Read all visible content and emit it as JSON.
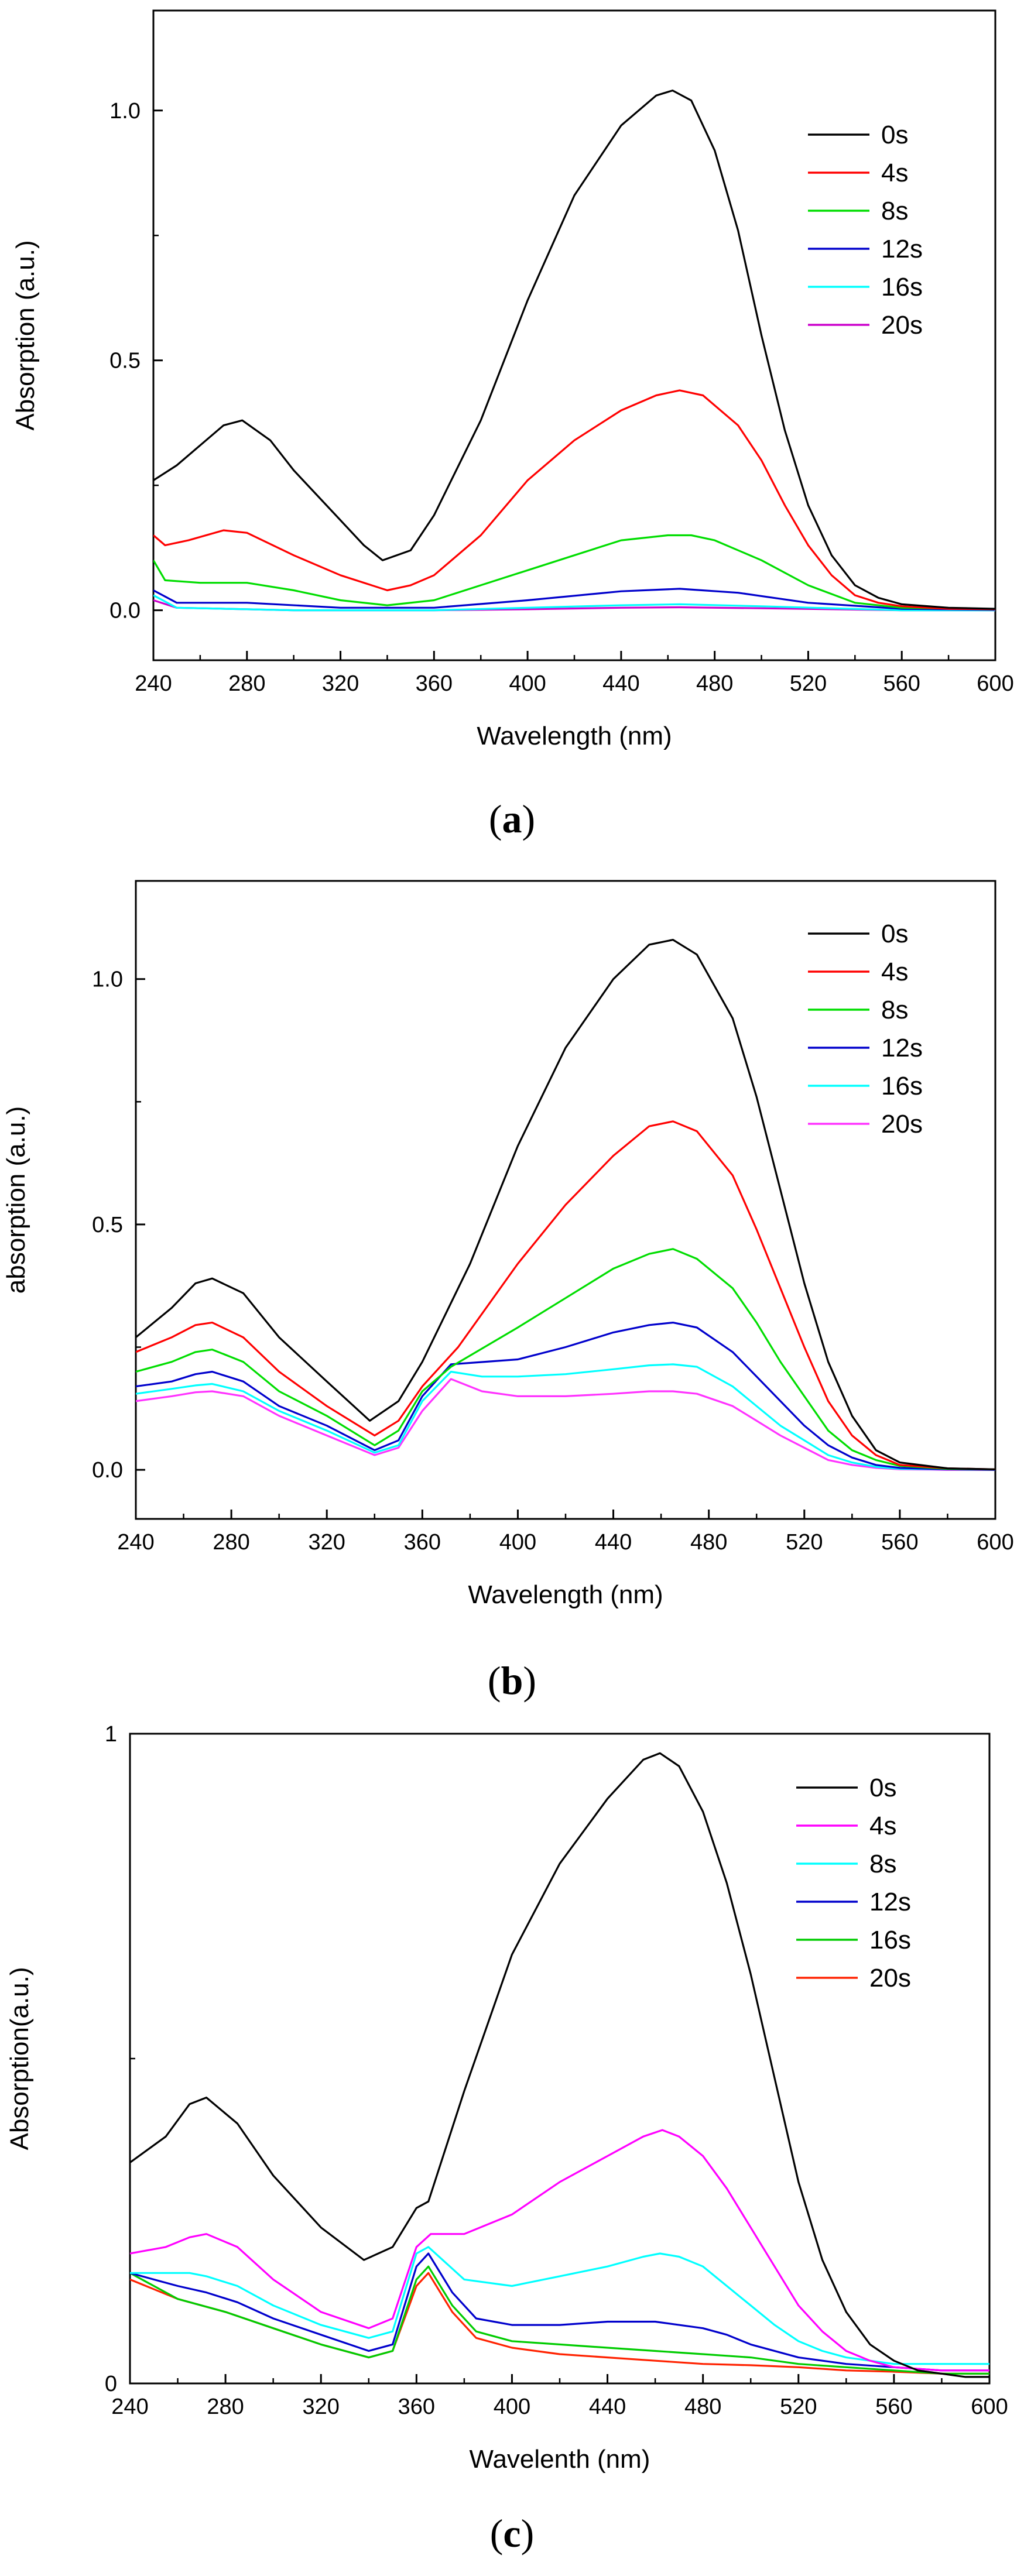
{
  "chart_data": [
    {
      "type": "line",
      "caption_letter": "a",
      "xlabel": "Wavelength (nm)",
      "ylabel": "Absorption (a.u.)",
      "xlim": [
        240,
        600
      ],
      "ylim": [
        -0.1,
        1.2
      ],
      "xticks": [
        240,
        280,
        320,
        360,
        400,
        440,
        480,
        520,
        560,
        600
      ],
      "xtick_labels": [
        "240",
        "280",
        "320",
        "360",
        "400",
        "440",
        "480",
        "520",
        "560",
        "600"
      ],
      "yticks": [
        0.0,
        0.5,
        1.0
      ],
      "ytick_labels": [
        "0.0",
        "0.5",
        "1.0"
      ],
      "legend_position": "top-right",
      "series": [
        {
          "name": "0s",
          "color": "#000000",
          "x": [
            240,
            250,
            260,
            270,
            278,
            290,
            300,
            320,
            330,
            338,
            350,
            360,
            380,
            400,
            420,
            440,
            455,
            462,
            470,
            480,
            490,
            500,
            510,
            520,
            530,
            540,
            550,
            560,
            580,
            600
          ],
          "y": [
            0.26,
            0.29,
            0.33,
            0.37,
            0.38,
            0.34,
            0.28,
            0.18,
            0.13,
            0.1,
            0.12,
            0.19,
            0.38,
            0.62,
            0.83,
            0.97,
            1.03,
            1.04,
            1.02,
            0.92,
            0.76,
            0.55,
            0.36,
            0.21,
            0.11,
            0.05,
            0.025,
            0.012,
            0.005,
            0.003
          ]
        },
        {
          "name": "4s",
          "color": "#ff0000",
          "x": [
            240,
            245,
            255,
            270,
            280,
            300,
            320,
            340,
            350,
            360,
            380,
            400,
            420,
            440,
            455,
            465,
            475,
            490,
            500,
            510,
            520,
            530,
            540,
            550,
            560,
            580,
            600
          ],
          "y": [
            0.15,
            0.13,
            0.14,
            0.16,
            0.155,
            0.11,
            0.07,
            0.04,
            0.05,
            0.07,
            0.15,
            0.26,
            0.34,
            0.4,
            0.43,
            0.44,
            0.43,
            0.37,
            0.3,
            0.21,
            0.13,
            0.07,
            0.03,
            0.015,
            0.008,
            0.003,
            0.002
          ]
        },
        {
          "name": "8s",
          "color": "#00dd00",
          "x": [
            240,
            245,
            260,
            280,
            300,
            320,
            340,
            360,
            380,
            400,
            420,
            440,
            460,
            470,
            480,
            500,
            520,
            540,
            560,
            600
          ],
          "y": [
            0.1,
            0.06,
            0.055,
            0.055,
            0.04,
            0.02,
            0.01,
            0.02,
            0.05,
            0.08,
            0.11,
            0.14,
            0.15,
            0.15,
            0.14,
            0.1,
            0.05,
            0.015,
            0.005,
            0.002
          ]
        },
        {
          "name": "12s",
          "color": "#0000cc",
          "x": [
            240,
            250,
            280,
            320,
            360,
            400,
            440,
            465,
            490,
            520,
            560,
            600
          ],
          "y": [
            0.04,
            0.015,
            0.015,
            0.005,
            0.005,
            0.02,
            0.038,
            0.043,
            0.035,
            0.015,
            0.003,
            0.001
          ]
        },
        {
          "name": "16s",
          "color": "#00ffff",
          "x": [
            240,
            250,
            300,
            360,
            400,
            440,
            465,
            500,
            560,
            600
          ],
          "y": [
            0.03,
            0.005,
            0.0,
            0.0,
            0.005,
            0.01,
            0.012,
            0.008,
            0.0,
            0.0
          ]
        },
        {
          "name": "20s",
          "color": "#cc00cc",
          "x": [
            240,
            250,
            300,
            360,
            400,
            440,
            465,
            500,
            560,
            600
          ],
          "y": [
            0.02,
            0.005,
            0.0,
            0.0,
            0.002,
            0.005,
            0.006,
            0.004,
            0.0,
            0.0
          ]
        }
      ]
    },
    {
      "type": "line",
      "caption_letter": "b",
      "xlabel": "Wavelength (nm)",
      "ylabel": "absorption (a.u.)",
      "xlim": [
        240,
        600
      ],
      "ylim": [
        -0.1,
        1.2
      ],
      "xticks": [
        240,
        280,
        320,
        360,
        400,
        440,
        480,
        520,
        560,
        600
      ],
      "xtick_labels": [
        "240",
        "280",
        "320",
        "360",
        "400",
        "440",
        "480",
        "520",
        "560",
        "600"
      ],
      "yticks": [
        0.0,
        0.5,
        1.0
      ],
      "ytick_labels": [
        "0.0",
        "0.5",
        "1.0"
      ],
      "legend_position": "top-right",
      "series": [
        {
          "name": "0s",
          "color": "#000000",
          "x": [
            240,
            255,
            265,
            272,
            285,
            300,
            320,
            338,
            350,
            360,
            380,
            400,
            420,
            440,
            455,
            465,
            475,
            490,
            500,
            510,
            520,
            530,
            540,
            550,
            560,
            580,
            600
          ],
          "y": [
            0.27,
            0.33,
            0.38,
            0.39,
            0.36,
            0.27,
            0.18,
            0.1,
            0.14,
            0.22,
            0.42,
            0.66,
            0.86,
            1.0,
            1.07,
            1.08,
            1.05,
            0.92,
            0.76,
            0.57,
            0.38,
            0.22,
            0.11,
            0.04,
            0.015,
            0.003,
            0.001
          ]
        },
        {
          "name": "4s",
          "color": "#ff0000",
          "x": [
            240,
            255,
            265,
            272,
            285,
            300,
            320,
            340,
            350,
            360,
            375,
            400,
            420,
            440,
            455,
            465,
            475,
            490,
            500,
            510,
            520,
            530,
            540,
            550,
            560,
            580,
            600
          ],
          "y": [
            0.24,
            0.27,
            0.295,
            0.3,
            0.27,
            0.2,
            0.13,
            0.07,
            0.1,
            0.17,
            0.25,
            0.42,
            0.54,
            0.64,
            0.7,
            0.71,
            0.69,
            0.6,
            0.49,
            0.37,
            0.25,
            0.14,
            0.07,
            0.03,
            0.01,
            0.003,
            0.001
          ]
        },
        {
          "name": "8s",
          "color": "#00dd00",
          "x": [
            240,
            255,
            265,
            272,
            285,
            300,
            320,
            340,
            350,
            360,
            372,
            400,
            420,
            440,
            455,
            465,
            475,
            490,
            500,
            510,
            520,
            530,
            540,
            550,
            560,
            580,
            600
          ],
          "y": [
            0.2,
            0.22,
            0.24,
            0.245,
            0.22,
            0.16,
            0.11,
            0.05,
            0.08,
            0.16,
            0.21,
            0.29,
            0.35,
            0.41,
            0.44,
            0.45,
            0.43,
            0.37,
            0.3,
            0.22,
            0.15,
            0.08,
            0.04,
            0.02,
            0.008,
            0.002,
            0.001
          ]
        },
        {
          "name": "12s",
          "color": "#0000cc",
          "x": [
            240,
            255,
            265,
            272,
            285,
            300,
            320,
            340,
            350,
            360,
            372,
            400,
            420,
            440,
            455,
            465,
            475,
            490,
            500,
            510,
            520,
            530,
            540,
            550,
            560,
            580,
            600
          ],
          "y": [
            0.17,
            0.18,
            0.195,
            0.2,
            0.18,
            0.13,
            0.09,
            0.04,
            0.06,
            0.15,
            0.215,
            0.225,
            0.25,
            0.28,
            0.295,
            0.3,
            0.29,
            0.24,
            0.19,
            0.14,
            0.09,
            0.05,
            0.025,
            0.01,
            0.004,
            0.001,
            0.0
          ]
        },
        {
          "name": "16s",
          "color": "#00ffff",
          "x": [
            240,
            255,
            265,
            272,
            285,
            300,
            320,
            340,
            350,
            360,
            372,
            385,
            400,
            420,
            440,
            455,
            465,
            475,
            490,
            500,
            510,
            520,
            530,
            540,
            550,
            560,
            580,
            600
          ],
          "y": [
            0.155,
            0.165,
            0.172,
            0.175,
            0.16,
            0.12,
            0.08,
            0.035,
            0.05,
            0.14,
            0.2,
            0.19,
            0.19,
            0.195,
            0.205,
            0.213,
            0.215,
            0.21,
            0.17,
            0.13,
            0.09,
            0.06,
            0.03,
            0.015,
            0.006,
            0.002,
            0.001,
            0.0
          ]
        },
        {
          "name": "20s",
          "color": "#ff33ff",
          "x": [
            240,
            255,
            265,
            272,
            285,
            300,
            320,
            340,
            350,
            360,
            372,
            385,
            400,
            420,
            440,
            455,
            465,
            475,
            490,
            500,
            510,
            520,
            530,
            540,
            550,
            560,
            580,
            600
          ],
          "y": [
            0.14,
            0.15,
            0.158,
            0.16,
            0.15,
            0.11,
            0.07,
            0.03,
            0.045,
            0.12,
            0.185,
            0.16,
            0.15,
            0.15,
            0.155,
            0.16,
            0.16,
            0.155,
            0.13,
            0.1,
            0.07,
            0.045,
            0.02,
            0.01,
            0.004,
            0.001,
            0.0,
            0.0
          ]
        }
      ]
    },
    {
      "type": "line",
      "caption_letter": "c",
      "xlabel": "Wavelenth (nm)",
      "ylabel": "Absorption(a.u.)",
      "xlim": [
        240,
        600
      ],
      "ylim": [
        0,
        1
      ],
      "xticks": [
        240,
        280,
        320,
        360,
        400,
        440,
        480,
        520,
        560,
        600
      ],
      "xtick_labels": [
        "240",
        "280",
        "320",
        "360",
        "400",
        "440",
        "480",
        "520",
        "560",
        "600"
      ],
      "yticks": [
        0,
        1
      ],
      "ytick_labels": [
        "0",
        "1"
      ],
      "legend_position": "top-right",
      "series": [
        {
          "name": "0s",
          "color": "#000000",
          "x": [
            240,
            255,
            265,
            272,
            285,
            300,
            320,
            338,
            350,
            360,
            365,
            380,
            400,
            420,
            440,
            455,
            462,
            470,
            480,
            490,
            500,
            510,
            520,
            530,
            540,
            550,
            560,
            570,
            580,
            590,
            600
          ],
          "y": [
            0.34,
            0.38,
            0.43,
            0.44,
            0.4,
            0.32,
            0.24,
            0.19,
            0.21,
            0.27,
            0.28,
            0.45,
            0.66,
            0.8,
            0.9,
            0.96,
            0.97,
            0.95,
            0.88,
            0.77,
            0.63,
            0.47,
            0.31,
            0.19,
            0.11,
            0.06,
            0.035,
            0.02,
            0.015,
            0.01,
            0.01
          ]
        },
        {
          "name": "4s",
          "color": "#ff00ff",
          "x": [
            240,
            255,
            265,
            272,
            285,
            300,
            320,
            340,
            350,
            360,
            366,
            380,
            400,
            420,
            440,
            455,
            463,
            470,
            480,
            490,
            500,
            510,
            520,
            530,
            540,
            550,
            560,
            580,
            600
          ],
          "y": [
            0.2,
            0.21,
            0.225,
            0.23,
            0.21,
            0.16,
            0.11,
            0.085,
            0.1,
            0.21,
            0.23,
            0.23,
            0.26,
            0.31,
            0.35,
            0.38,
            0.39,
            0.38,
            0.35,
            0.3,
            0.24,
            0.18,
            0.12,
            0.08,
            0.05,
            0.035,
            0.025,
            0.02,
            0.02
          ]
        },
        {
          "name": "8s",
          "color": "#00ffff",
          "x": [
            240,
            255,
            265,
            272,
            285,
            300,
            320,
            340,
            350,
            360,
            365,
            380,
            400,
            420,
            440,
            455,
            462,
            470,
            480,
            490,
            500,
            510,
            520,
            530,
            540,
            550,
            560,
            580,
            600
          ],
          "y": [
            0.17,
            0.17,
            0.17,
            0.165,
            0.15,
            0.12,
            0.09,
            0.07,
            0.08,
            0.2,
            0.21,
            0.16,
            0.15,
            0.165,
            0.18,
            0.195,
            0.2,
            0.195,
            0.18,
            0.15,
            0.12,
            0.09,
            0.065,
            0.05,
            0.04,
            0.035,
            0.03,
            0.03,
            0.03
          ]
        },
        {
          "name": "12s",
          "color": "#0000cc",
          "x": [
            240,
            250,
            260,
            272,
            285,
            300,
            320,
            340,
            350,
            360,
            365,
            375,
            385,
            400,
            420,
            440,
            460,
            470,
            480,
            490,
            500,
            520,
            540,
            560,
            580,
            600
          ],
          "y": [
            0.17,
            0.16,
            0.15,
            0.14,
            0.125,
            0.1,
            0.075,
            0.05,
            0.06,
            0.18,
            0.2,
            0.14,
            0.1,
            0.09,
            0.09,
            0.095,
            0.095,
            0.09,
            0.085,
            0.075,
            0.06,
            0.04,
            0.03,
            0.025,
            0.02,
            0.02
          ]
        },
        {
          "name": "16s",
          "color": "#00cc00",
          "x": [
            240,
            260,
            280,
            300,
            320,
            340,
            350,
            360,
            365,
            375,
            385,
            400,
            420,
            440,
            460,
            480,
            500,
            520,
            540,
            560,
            580,
            600
          ],
          "y": [
            0.17,
            0.13,
            0.11,
            0.085,
            0.06,
            0.04,
            0.05,
            0.16,
            0.18,
            0.12,
            0.08,
            0.065,
            0.06,
            0.055,
            0.05,
            0.045,
            0.04,
            0.03,
            0.025,
            0.02,
            0.015,
            0.015
          ]
        },
        {
          "name": "20s",
          "color": "#ff2200",
          "x": [
            240,
            260,
            280,
            300,
            320,
            340,
            350,
            360,
            365,
            375,
            385,
            400,
            420,
            440,
            460,
            480,
            500,
            520,
            540,
            560,
            580,
            600
          ],
          "y": [
            0.16,
            0.13,
            0.11,
            0.085,
            0.06,
            0.04,
            0.05,
            0.15,
            0.17,
            0.11,
            0.07,
            0.055,
            0.045,
            0.04,
            0.035,
            0.03,
            0.028,
            0.025,
            0.02,
            0.018,
            0.015,
            0.015
          ]
        }
      ]
    }
  ]
}
